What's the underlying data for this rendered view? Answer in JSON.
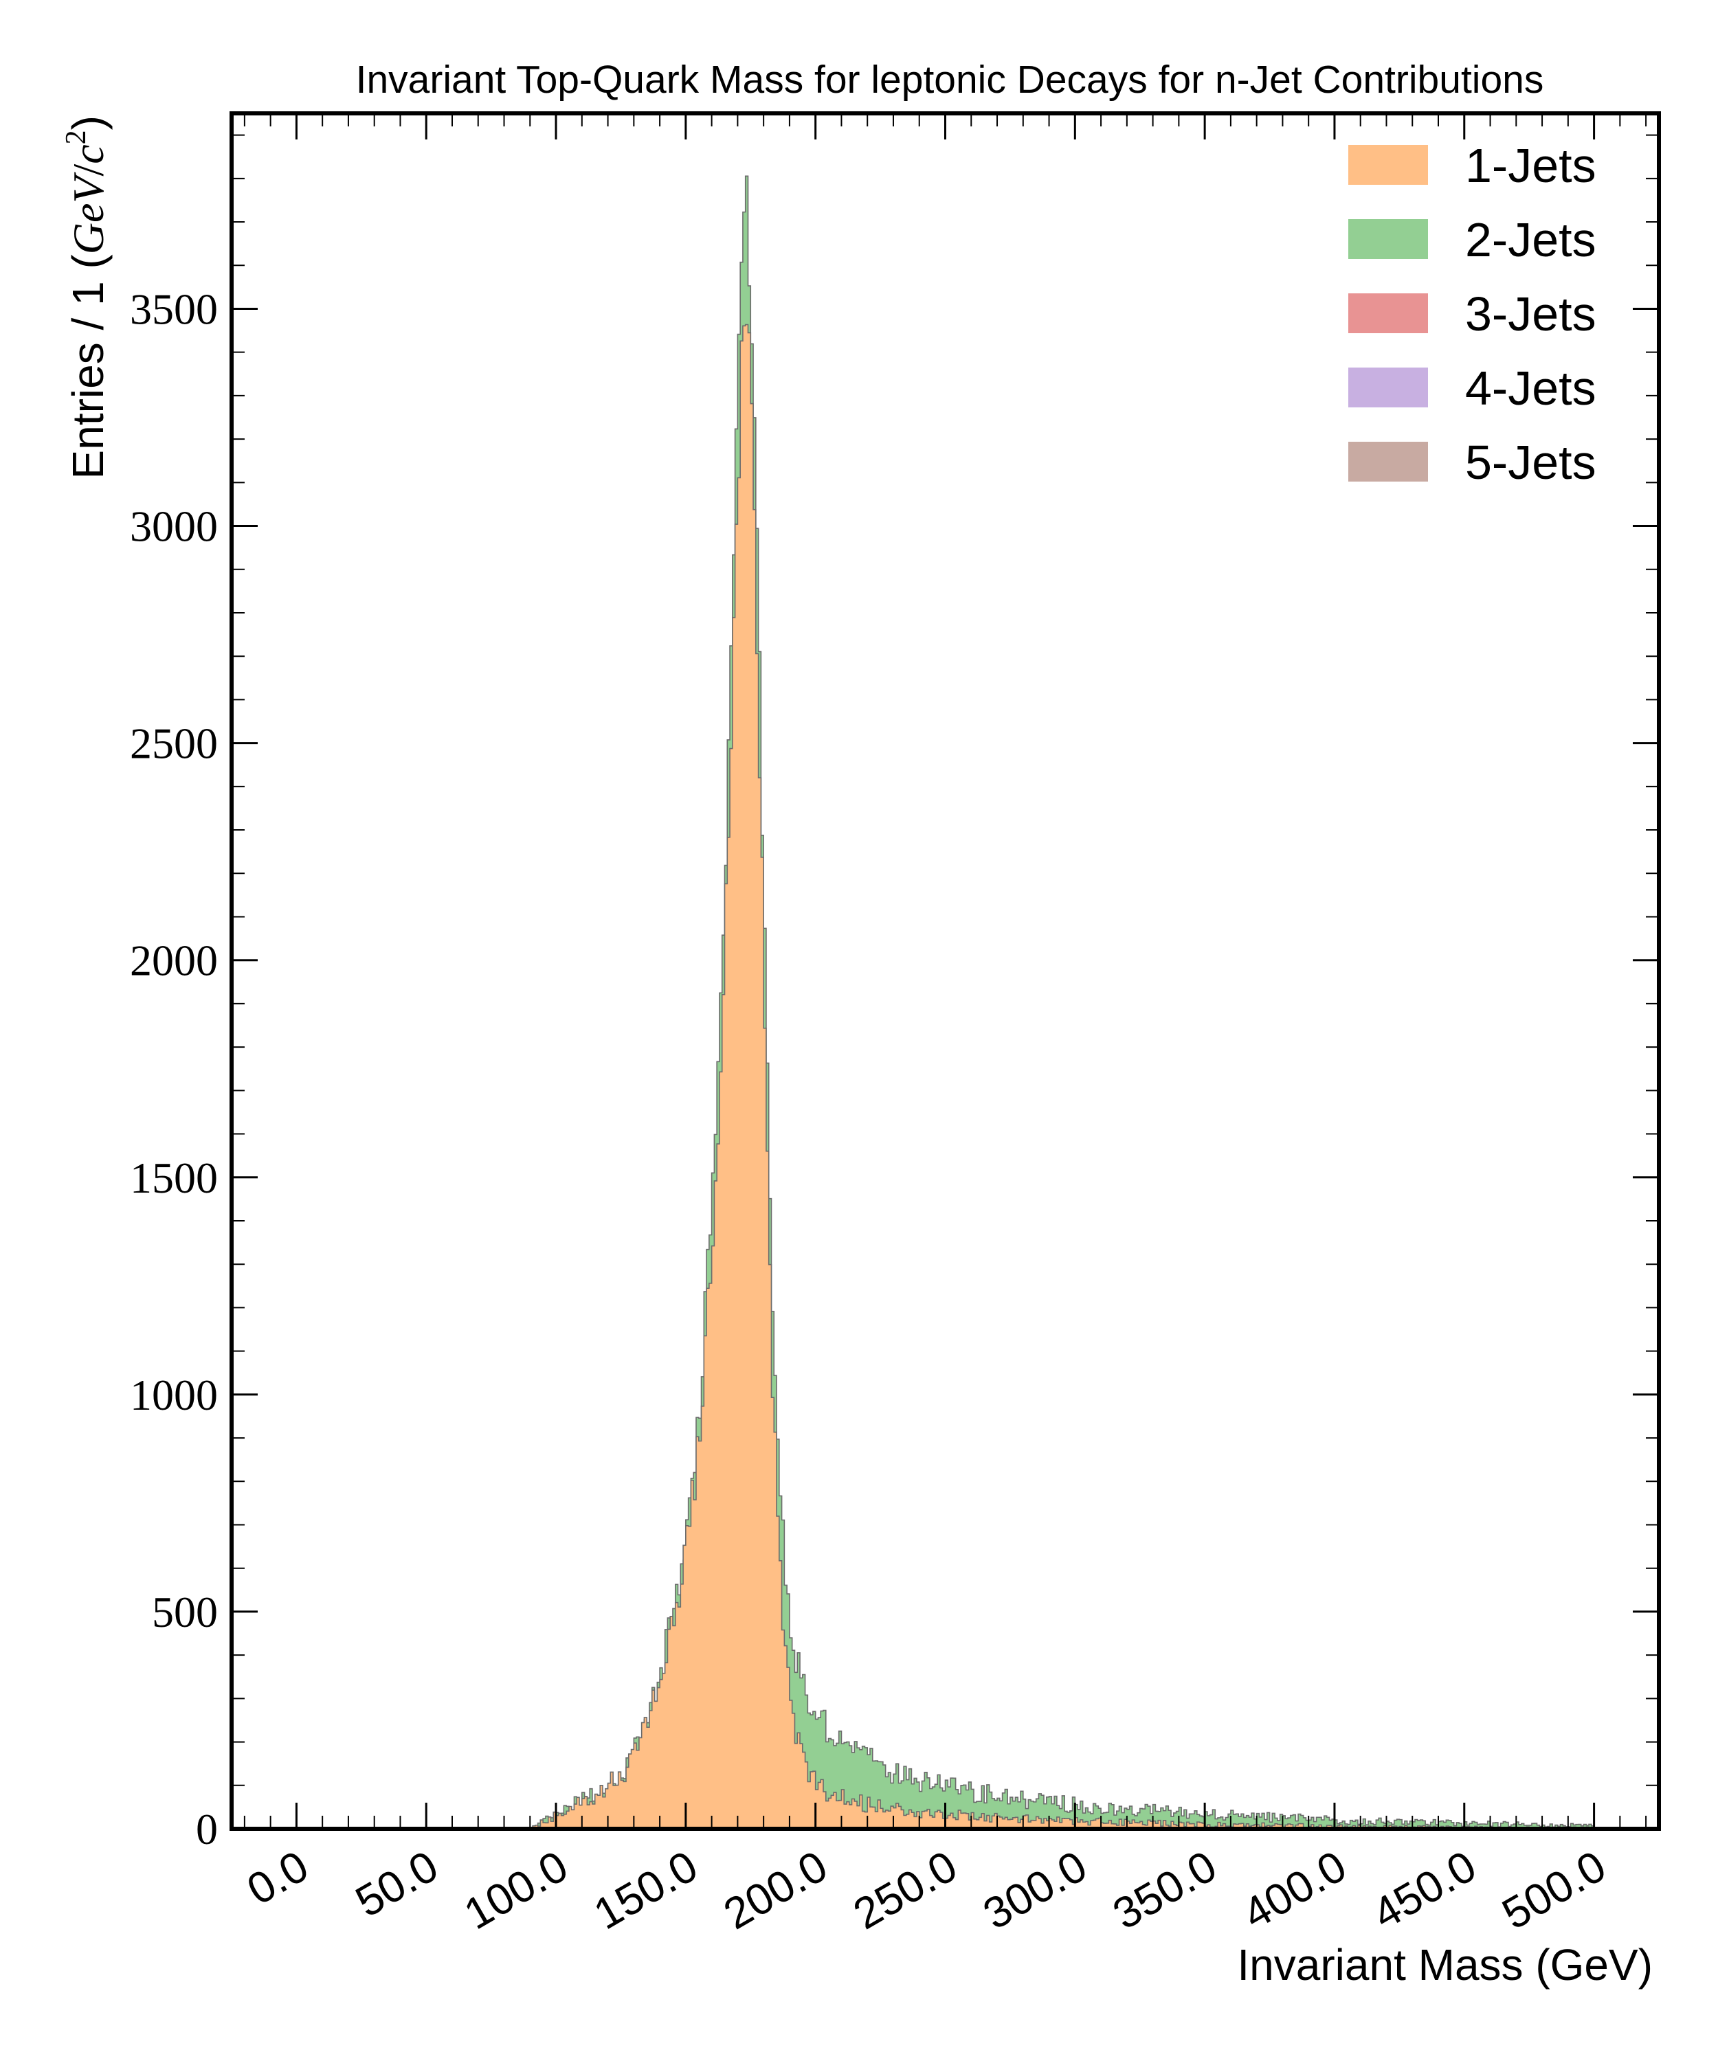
{
  "chart_data": {
    "type": "histogram",
    "stacked": true,
    "title": "Invariant Top-Quark Mass for leptonic Decays for n-Jet Contributions",
    "xlabel": "Invariant Mass (GeV)",
    "ylabel": {
      "prefix": "Entries / 1 (",
      "var1": "GeV",
      "slash": "/",
      "var2": "c",
      "sup": "2",
      "suffix": ")"
    },
    "xlim": [
      -25,
      525
    ],
    "ylim": [
      0,
      3950
    ],
    "grid": false,
    "legend_position": "top-right",
    "xticks": [
      "0.0",
      "50.0",
      "100.0",
      "150.0",
      "200.0",
      "250.0",
      "300.0",
      "350.0",
      "400.0",
      "450.0",
      "500.0"
    ],
    "yticks": [
      "0",
      "500",
      "1000",
      "1500",
      "2000",
      "2500",
      "3000",
      "3500"
    ],
    "series": [
      {
        "name": "1-Jets",
        "color": "#ffbf86",
        "points": [
          [
            90,
            0
          ],
          [
            95,
            15
          ],
          [
            100,
            30
          ],
          [
            105,
            45
          ],
          [
            110,
            60
          ],
          [
            115,
            75
          ],
          [
            120,
            100
          ],
          [
            125,
            120
          ],
          [
            130,
            170
          ],
          [
            135,
            250
          ],
          [
            140,
            330
          ],
          [
            145,
            460
          ],
          [
            150,
            640
          ],
          [
            155,
            880
          ],
          [
            158,
            1150
          ],
          [
            160,
            1300
          ],
          [
            162,
            1580
          ],
          [
            164,
            1800
          ],
          [
            166,
            2260
          ],
          [
            168,
            2660
          ],
          [
            170,
            3080
          ],
          [
            172,
            3550
          ],
          [
            174,
            3540
          ],
          [
            176,
            3260
          ],
          [
            178,
            2640
          ],
          [
            180,
            2000
          ],
          [
            182,
            1400
          ],
          [
            184,
            940
          ],
          [
            186,
            640
          ],
          [
            188,
            450
          ],
          [
            190,
            300
          ],
          [
            193,
            210
          ],
          [
            196,
            150
          ],
          [
            200,
            110
          ],
          [
            205,
            85
          ],
          [
            210,
            70
          ],
          [
            220,
            55
          ],
          [
            230,
            45
          ],
          [
            240,
            38
          ],
          [
            250,
            33
          ],
          [
            270,
            26
          ],
          [
            300,
            18
          ],
          [
            350,
            10
          ],
          [
            400,
            6
          ],
          [
            450,
            3
          ],
          [
            500,
            2
          ]
        ]
      },
      {
        "name": "2-Jets",
        "color": "#93cf93",
        "points": [
          [
            90,
            0
          ],
          [
            95,
            16
          ],
          [
            100,
            32
          ],
          [
            105,
            48
          ],
          [
            110,
            64
          ],
          [
            115,
            80
          ],
          [
            120,
            106
          ],
          [
            125,
            128
          ],
          [
            130,
            180
          ],
          [
            135,
            264
          ],
          [
            140,
            350
          ],
          [
            145,
            486
          ],
          [
            150,
            676
          ],
          [
            155,
            930
          ],
          [
            158,
            1230
          ],
          [
            160,
            1400
          ],
          [
            162,
            1690
          ],
          [
            164,
            1920
          ],
          [
            166,
            2390
          ],
          [
            168,
            2810
          ],
          [
            170,
            3250
          ],
          [
            172,
            3740
          ],
          [
            174,
            3700
          ],
          [
            176,
            3420
          ],
          [
            178,
            2800
          ],
          [
            180,
            2160
          ],
          [
            182,
            1570
          ],
          [
            184,
            1110
          ],
          [
            186,
            810
          ],
          [
            188,
            610
          ],
          [
            190,
            470
          ],
          [
            193,
            380
          ],
          [
            196,
            320
          ],
          [
            200,
            270
          ],
          [
            205,
            230
          ],
          [
            210,
            200
          ],
          [
            220,
            160
          ],
          [
            230,
            130
          ],
          [
            240,
            110
          ],
          [
            250,
            95
          ],
          [
            270,
            75
          ],
          [
            300,
            55
          ],
          [
            350,
            33
          ],
          [
            400,
            20
          ],
          [
            450,
            12
          ],
          [
            500,
            7
          ]
        ]
      },
      {
        "name": "3-Jets",
        "color": "#e89393",
        "points": [
          [
            90,
            0
          ],
          [
            500,
            0
          ]
        ]
      },
      {
        "name": "4-Jets",
        "color": "#c8b0e1",
        "points": [
          [
            90,
            0
          ],
          [
            500,
            0
          ]
        ]
      },
      {
        "name": "5-Jets",
        "color": "#c8aaa2",
        "points": [
          [
            90,
            0
          ],
          [
            500,
            0
          ]
        ]
      }
    ]
  }
}
